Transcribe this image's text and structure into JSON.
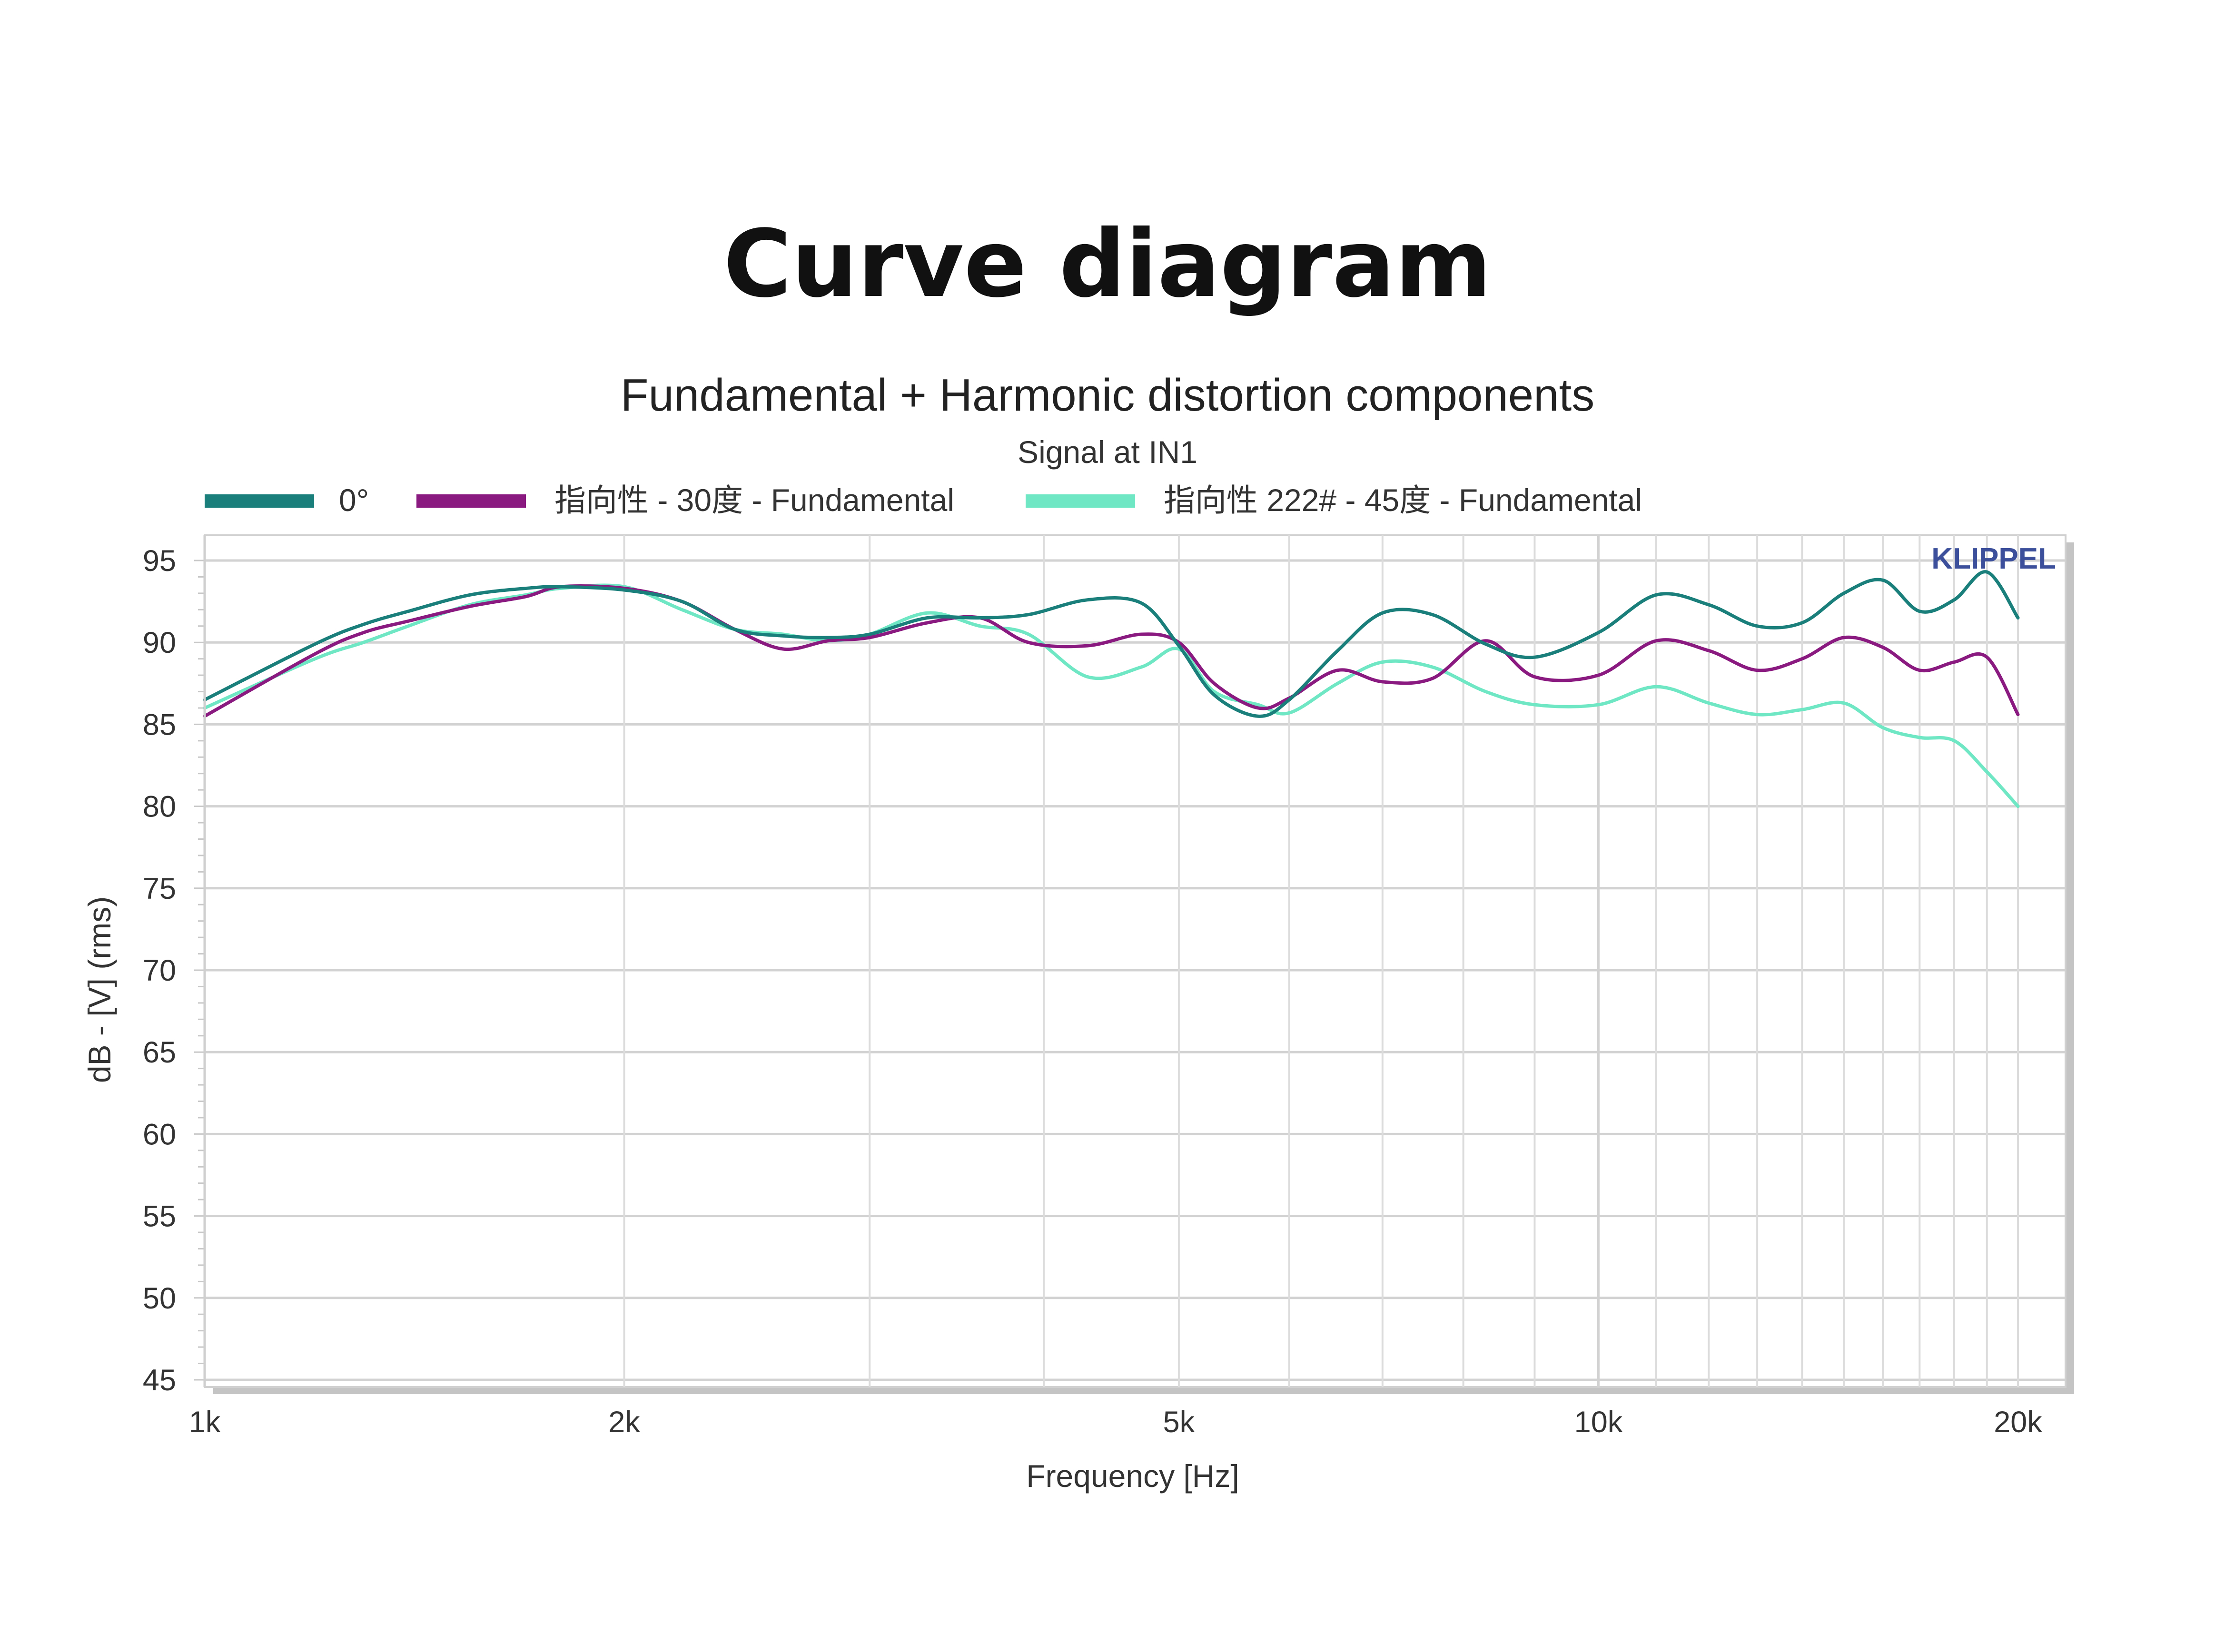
{
  "page": {
    "heading": "Curve diagram"
  },
  "chart_data": {
    "type": "line",
    "title": "Fundamental + Harmonic distortion components",
    "subtitle": "Signal at IN1",
    "xlabel": "Frequency [Hz]",
    "ylabel": "dB - [V]  (rms)",
    "watermark": "KLIPPEL",
    "x_scale": "log",
    "xlim": [
      1000,
      20000
    ],
    "ylim": [
      45,
      95
    ],
    "x_ticks": [
      {
        "value": 1000,
        "label": "1k"
      },
      {
        "value": 2000,
        "label": "2k"
      },
      {
        "value": 5000,
        "label": "5k"
      },
      {
        "value": 10000,
        "label": "10k"
      },
      {
        "value": 20000,
        "label": "20k"
      }
    ],
    "y_ticks": [
      {
        "value": 95,
        "label": "95"
      },
      {
        "value": 90,
        "label": "90"
      },
      {
        "value": 85,
        "label": "85"
      },
      {
        "value": 80,
        "label": "80"
      },
      {
        "value": 75,
        "label": "75"
      },
      {
        "value": 70,
        "label": "70"
      },
      {
        "value": 65,
        "label": "65"
      },
      {
        "value": 60,
        "label": "60"
      },
      {
        "value": 55,
        "label": "55"
      },
      {
        "value": 50,
        "label": "50"
      },
      {
        "value": 45,
        "label": "45"
      }
    ],
    "grid": true,
    "legend_position": "top",
    "series": [
      {
        "name": "0°",
        "color": "#1a7f7a",
        "x": [
          1000,
          1200,
          1300,
          1400,
          1550,
          1700,
          1800,
          2000,
          2200,
          2400,
          2600,
          2800,
          3000,
          3300,
          3600,
          3900,
          4300,
          4700,
          5000,
          5300,
          5700,
          6000,
          6500,
          7000,
          7600,
          8300,
          9000,
          10000,
          11000,
          12000,
          13000,
          14000,
          15000,
          16000,
          17000,
          18000,
          19000,
          20000
        ],
        "y": [
          86.5,
          89.9,
          91.1,
          91.9,
          92.9,
          93.3,
          93.4,
          93.2,
          92.5,
          90.8,
          90.4,
          90.3,
          90.5,
          91.5,
          91.5,
          91.7,
          92.6,
          92.4,
          89.8,
          86.8,
          85.5,
          86.5,
          89.5,
          91.8,
          91.7,
          89.9,
          89.1,
          90.6,
          92.9,
          92.3,
          91.0,
          91.2,
          93.0,
          93.8,
          91.9,
          92.6,
          94.3,
          91.5
        ]
      },
      {
        "name": "指向性 - 30度 - Fundamental",
        "color": "#8a1a80",
        "x": [
          1000,
          1200,
          1300,
          1400,
          1550,
          1700,
          1800,
          2000,
          2200,
          2400,
          2600,
          2800,
          3000,
          3300,
          3600,
          3900,
          4300,
          4700,
          5000,
          5300,
          5700,
          6000,
          6500,
          7000,
          7600,
          8300,
          9000,
          10000,
          11000,
          12000,
          13000,
          14000,
          15000,
          16000,
          17000,
          18000,
          19000,
          20000
        ],
        "y": [
          85.5,
          89.3,
          90.6,
          91.3,
          92.2,
          92.8,
          93.4,
          93.3,
          92.5,
          90.8,
          89.6,
          90.1,
          90.3,
          91.2,
          91.5,
          90.0,
          89.8,
          90.5,
          90.0,
          87.5,
          86.0,
          86.6,
          88.3,
          87.6,
          87.8,
          90.1,
          87.9,
          88.0,
          90.1,
          89.5,
          88.3,
          89.0,
          90.3,
          89.7,
          88.3,
          88.8,
          89.1,
          85.6
        ]
      },
      {
        "name": "指向性 222# - 45度 - Fundamental",
        "color": "#6fe6c4",
        "x": [
          1000,
          1200,
          1300,
          1400,
          1550,
          1700,
          1800,
          2000,
          2200,
          2400,
          2600,
          2800,
          3000,
          3300,
          3600,
          3900,
          4300,
          4700,
          5000,
          5300,
          5700,
          6000,
          6500,
          7000,
          7600,
          8300,
          9000,
          10000,
          11000,
          12000,
          13000,
          14000,
          15000,
          16000,
          17000,
          18000,
          19000,
          20000
        ],
        "y": [
          86.0,
          89.0,
          90.0,
          91.0,
          92.3,
          92.9,
          93.3,
          93.4,
          92.0,
          90.8,
          90.5,
          90.1,
          90.5,
          91.8,
          91.0,
          90.5,
          87.9,
          88.5,
          89.6,
          87.0,
          86.2,
          85.7,
          87.5,
          88.8,
          88.5,
          87.0,
          86.2,
          86.2,
          87.3,
          86.3,
          85.6,
          85.9,
          86.3,
          84.8,
          84.2,
          84.0,
          82.1,
          80.0
        ]
      }
    ]
  }
}
